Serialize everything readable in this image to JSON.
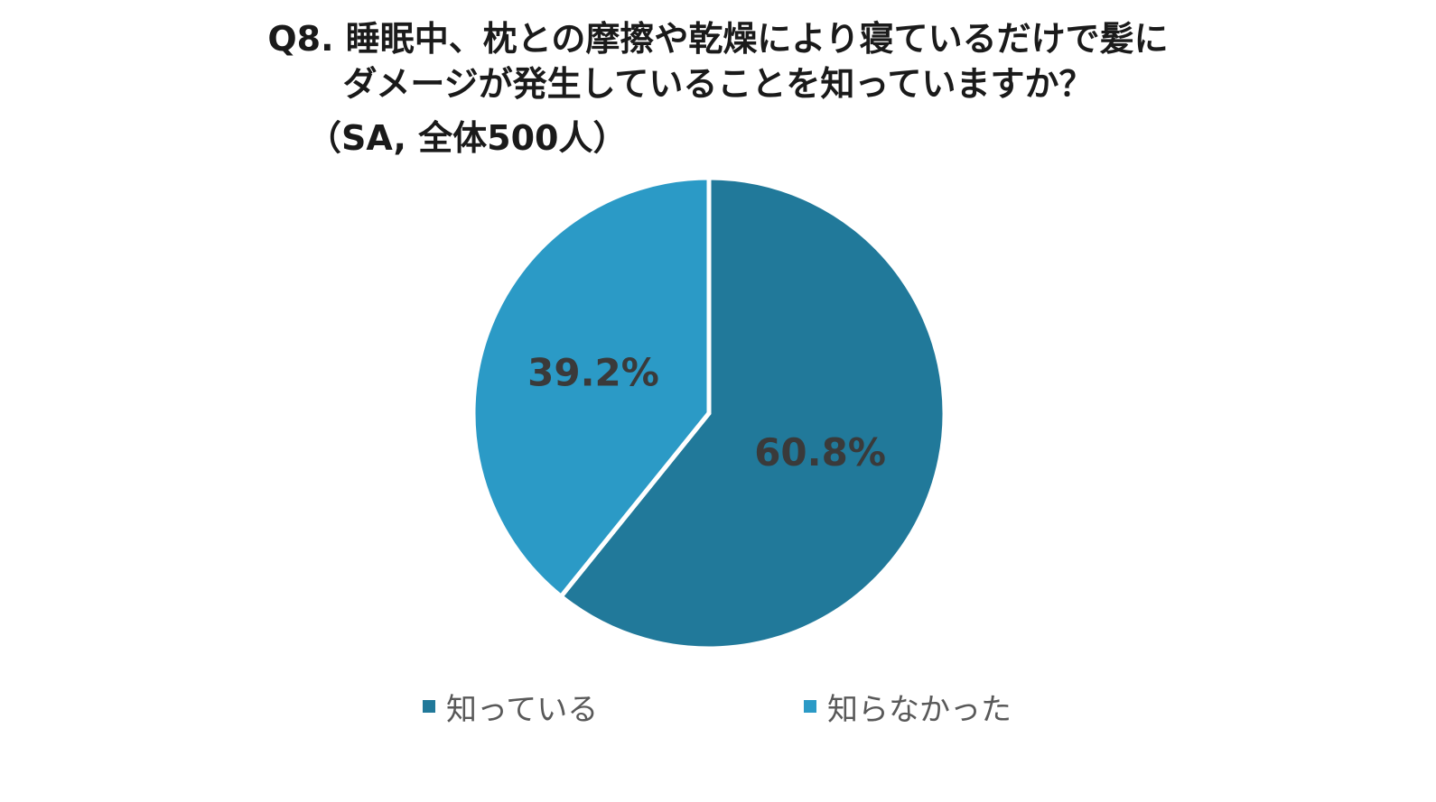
{
  "chart_data": {
    "type": "pie",
    "title_lines": [
      "Q8. 睡眠中、枕との摩擦や乾燥により寝ているだけで髪に",
      "ダメージが発生していることを知っていますか？"
    ],
    "subtitle": "（SA, 全体500人）",
    "slices": [
      {
        "name": "知っている",
        "value": 60.8,
        "label": "60.8%",
        "color": "#21799a"
      },
      {
        "name": "知らなかった",
        "value": 39.2,
        "label": "39.2%",
        "color": "#2b9ac6"
      }
    ],
    "start_angle_deg": 0,
    "direction": "clockwise",
    "legend_position": "bottom"
  }
}
